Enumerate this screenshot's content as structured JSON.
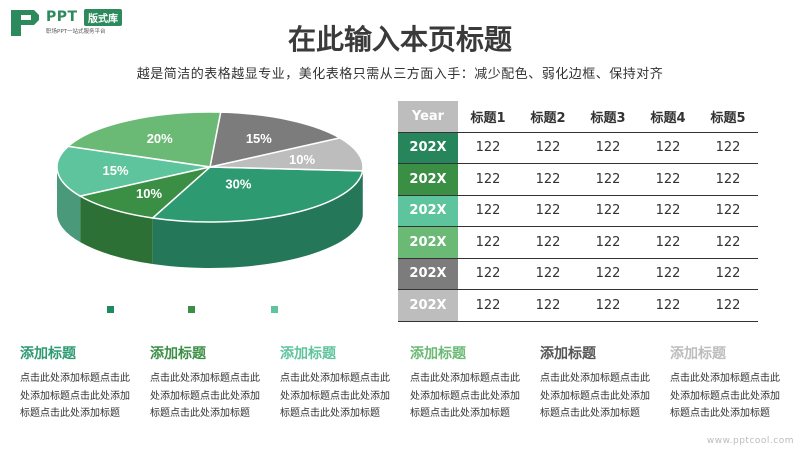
{
  "logo": {
    "text": "PPT",
    "badge": "版式库",
    "subtitle": "职场PPT一站式服务平台"
  },
  "title": "在此输入本页标题",
  "subtitle": "越是简洁的表格越显专业，美化表格只需从三方面入手：减少配色、弱化边框、保持对齐",
  "chart_data": {
    "type": "pie",
    "slices": [
      {
        "label": "30%",
        "value": 30,
        "color": "#2e9a72"
      },
      {
        "label": "10%",
        "value": 10,
        "color": "#bdbdbd"
      },
      {
        "label": "15%",
        "value": 15,
        "color": "#7c7c7c"
      },
      {
        "label": "20%",
        "value": 20,
        "color": "#6ab974"
      },
      {
        "label": "15%",
        "value": 15,
        "color": "#5ec49d"
      },
      {
        "label": "10%",
        "value": 10,
        "color": "#3a8f45"
      }
    ],
    "legend_colors": [
      "#1f8a5e",
      "#3a8f45",
      "#5ec49d"
    ]
  },
  "table": {
    "header_year": "Year",
    "header_year_color": "#bdbdbd",
    "columns": [
      "标题1",
      "标题2",
      "标题3",
      "标题4",
      "标题5"
    ],
    "rows": [
      {
        "year": "202X",
        "color": "#26855a",
        "values": [
          "122",
          "122",
          "122",
          "122",
          "122"
        ]
      },
      {
        "year": "202X",
        "color": "#3a8f45",
        "values": [
          "122",
          "122",
          "122",
          "122",
          "122"
        ]
      },
      {
        "year": "202X",
        "color": "#5ec49d",
        "values": [
          "122",
          "122",
          "122",
          "122",
          "122"
        ]
      },
      {
        "year": "202X",
        "color": "#6ab974",
        "values": [
          "122",
          "122",
          "122",
          "122",
          "122"
        ]
      },
      {
        "year": "202X",
        "color": "#7c7c7c",
        "values": [
          "122",
          "122",
          "122",
          "122",
          "122"
        ]
      },
      {
        "year": "202X",
        "color": "#bdbdbd",
        "values": [
          "122",
          "122",
          "122",
          "122",
          "122"
        ]
      }
    ]
  },
  "cards": [
    {
      "title": "添加标题",
      "color": "#2e9a72",
      "body": "点击此处添加标题点击此处添加标题点击此处添加标题点击此处添加标题"
    },
    {
      "title": "添加标题",
      "color": "#3a8f45",
      "body": "点击此处添加标题点击此处添加标题点击此处添加标题点击此处添加标题"
    },
    {
      "title": "添加标题",
      "color": "#5ec49d",
      "body": "点击此处添加标题点击此处添加标题点击此处添加标题点击此处添加标题"
    },
    {
      "title": "添加标题",
      "color": "#6ab974",
      "body": "点击此处添加标题点击此处添加标题点击此处添加标题点击此处添加标题"
    },
    {
      "title": "添加标题",
      "color": "#555555",
      "body": "点击此处添加标题点击此处添加标题点击此处添加标题点击此处添加标题"
    },
    {
      "title": "添加标题",
      "color": "#bdbdbd",
      "body": "点击此处添加标题点击此处添加标题点击此处添加标题点击此处添加标题"
    }
  ],
  "watermark": "www.pptcool.com"
}
